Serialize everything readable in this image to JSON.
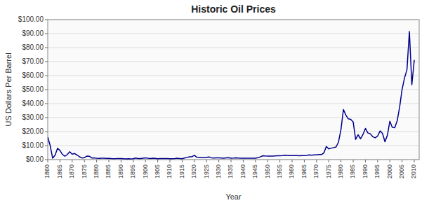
{
  "chart_data": {
    "type": "line",
    "title": "Historic Oil Prices",
    "xlabel": "Year",
    "ylabel": "US Dollars Per Barrel",
    "color": "#00008B",
    "grid": true,
    "xlim": [
      1860,
      2012
    ],
    "xticks": [
      1860,
      1865,
      1870,
      1875,
      1880,
      1885,
      1890,
      1895,
      1900,
      1905,
      1910,
      1915,
      1920,
      1925,
      1930,
      1935,
      1940,
      1945,
      1950,
      1955,
      1960,
      1965,
      1970,
      1975,
      1980,
      1985,
      1990,
      1995,
      2000,
      2005,
      2010
    ],
    "ylim": [
      0,
      100
    ],
    "yticks": [
      {
        "value": 0,
        "label": "$0.00"
      },
      {
        "value": 10,
        "label": "$10.00"
      },
      {
        "value": 20,
        "label": "$20.00"
      },
      {
        "value": 30,
        "label": "$30.00"
      },
      {
        "value": 40,
        "label": "$40.00"
      },
      {
        "value": 50,
        "label": "$50.00"
      },
      {
        "value": 60,
        "label": "$60.00"
      },
      {
        "value": 70,
        "label": "$70.00"
      },
      {
        "value": 80,
        "label": "$80.00"
      },
      {
        "value": 90,
        "label": "$90.00"
      },
      {
        "value": 100,
        "label": "$100.00"
      }
    ],
    "x": [
      1860,
      1861,
      1862,
      1863,
      1864,
      1865,
      1866,
      1867,
      1868,
      1869,
      1870,
      1871,
      1872,
      1873,
      1874,
      1875,
      1876,
      1877,
      1878,
      1879,
      1880,
      1881,
      1882,
      1883,
      1884,
      1885,
      1886,
      1887,
      1888,
      1889,
      1890,
      1891,
      1892,
      1893,
      1894,
      1895,
      1896,
      1897,
      1898,
      1899,
      1900,
      1901,
      1902,
      1903,
      1904,
      1905,
      1906,
      1907,
      1908,
      1909,
      1910,
      1911,
      1912,
      1913,
      1914,
      1915,
      1916,
      1917,
      1918,
      1919,
      1920,
      1921,
      1922,
      1923,
      1924,
      1925,
      1926,
      1927,
      1928,
      1929,
      1930,
      1931,
      1932,
      1933,
      1934,
      1935,
      1936,
      1937,
      1938,
      1939,
      1940,
      1941,
      1942,
      1943,
      1944,
      1945,
      1946,
      1947,
      1948,
      1949,
      1950,
      1951,
      1952,
      1953,
      1954,
      1955,
      1956,
      1957,
      1958,
      1959,
      1960,
      1961,
      1962,
      1963,
      1964,
      1965,
      1966,
      1967,
      1968,
      1969,
      1970,
      1971,
      1972,
      1973,
      1974,
      1975,
      1976,
      1977,
      1978,
      1979,
      1980,
      1981,
      1982,
      1983,
      1984,
      1985,
      1986,
      1987,
      1988,
      1989,
      1990,
      1991,
      1992,
      1993,
      1994,
      1995,
      1996,
      1997,
      1998,
      1999,
      2000,
      2001,
      2002,
      2003,
      2004,
      2005,
      2006,
      2007,
      2008,
      2009,
      2010
    ],
    "values": [
      16.0,
      10.0,
      1.05,
      3.15,
      8.06,
      6.59,
      3.74,
      2.41,
      3.63,
      5.61,
      3.86,
      4.34,
      3.25,
      2.01,
      1.17,
      1.35,
      2.56,
      2.42,
      1.17,
      1.19,
      0.95,
      0.86,
      1.0,
      1.0,
      0.84,
      0.88,
      0.71,
      0.67,
      0.7,
      0.77,
      0.77,
      0.67,
      0.56,
      0.64,
      0.54,
      0.59,
      1.11,
      0.7,
      0.7,
      1.01,
      1.19,
      0.96,
      0.8,
      0.94,
      0.86,
      0.62,
      0.73,
      0.72,
      0.72,
      0.73,
      0.61,
      0.61,
      0.74,
      0.95,
      0.81,
      0.64,
      1.1,
      1.56,
      1.98,
      2.01,
      3.07,
      1.73,
      1.61,
      1.34,
      1.43,
      1.68,
      1.88,
      1.3,
      1.17,
      1.27,
      1.19,
      1.14,
      1.0,
      1.29,
      1.35,
      1.03,
      1.1,
      1.24,
      1.13,
      1.02,
      1.02,
      1.05,
      1.02,
      1.02,
      1.05,
      1.05,
      1.41,
      1.93,
      2.77,
      2.57,
      2.51,
      2.53,
      2.53,
      2.68,
      2.78,
      2.77,
      2.88,
      3.09,
      3.01,
      2.9,
      2.91,
      2.89,
      2.82,
      2.75,
      2.88,
      2.9,
      3.02,
      3.33,
      3.18,
      3.32,
      3.39,
      3.6,
      3.6,
      4.75,
      9.35,
      7.67,
      8.19,
      8.57,
      9.0,
      12.64,
      21.59,
      35.75,
      31.83,
      29.08,
      28.75,
      26.92,
      14.44,
      17.75,
      14.87,
      17.97,
      22.26,
      19.06,
      18.44,
      16.33,
      15.53,
      16.86,
      20.46,
      18.64,
      12.72,
      17.44,
      27.39,
      23.0,
      22.81,
      27.69,
      37.41,
      50.04,
      58.3,
      64.2,
      91.48,
      53.48,
      71.21
    ]
  }
}
